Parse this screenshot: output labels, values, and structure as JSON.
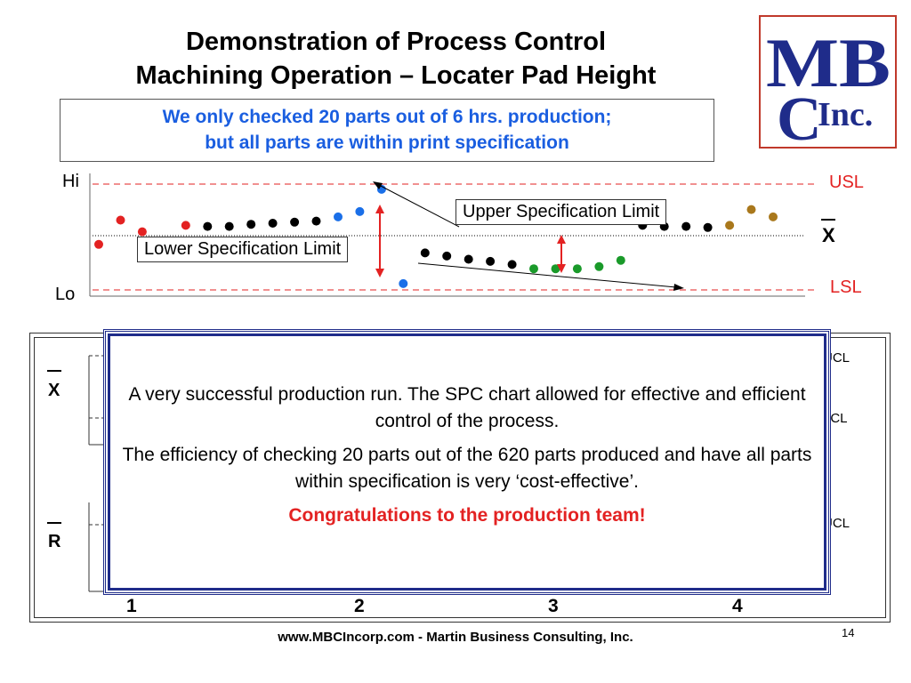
{
  "title_line1": "Demonstration of Process Control",
  "title_line2": "Machining Operation – Locater Pad Height",
  "logo": {
    "top": "MB",
    "c": "C",
    "inc": "Inc."
  },
  "callout_line1": "We only checked 20 parts out of 6 hrs. production;",
  "callout_line2": "but all parts are within print specification",
  "colors": {
    "red": "#e32222",
    "blue": "#1a6fe8",
    "black": "#000000",
    "green": "#1a9a2a",
    "olive": "#a9781c",
    "frame": "#1f2c8a"
  },
  "chart_data": {
    "type": "scatter",
    "y_tick_labels": [
      "Hi",
      "Lo"
    ],
    "reference_lines": [
      {
        "name": "USL",
        "style": "dashed",
        "color": "#e32222"
      },
      {
        "name": "X",
        "style": "dotted",
        "color": "#000000"
      },
      {
        "name": "LSL",
        "style": "dashed",
        "color": "#e32222"
      }
    ],
    "scale_note": "values on 0 (Lo) to 100 (Hi) scale",
    "ylim": [
      0,
      100
    ],
    "series": [
      {
        "color": "#e32222",
        "points": [
          [
            1,
            43
          ],
          [
            2,
            66
          ],
          [
            3,
            55
          ],
          [
            5,
            61
          ]
        ]
      },
      {
        "color": "#000000",
        "points": [
          [
            6,
            60
          ],
          [
            7,
            60
          ],
          [
            8,
            62
          ],
          [
            9,
            63
          ],
          [
            10,
            64
          ],
          [
            11,
            65
          ]
        ]
      },
      {
        "color": "#1a6fe8",
        "points": [
          [
            12,
            69
          ],
          [
            13,
            74
          ],
          [
            14,
            95
          ],
          [
            15,
            6
          ]
        ]
      },
      {
        "color": "#000000",
        "points": [
          [
            16,
            35
          ],
          [
            17,
            32
          ],
          [
            18,
            29
          ],
          [
            19,
            27
          ],
          [
            20,
            24
          ]
        ]
      },
      {
        "color": "#1a9a2a",
        "points": [
          [
            21,
            20
          ],
          [
            22,
            20
          ],
          [
            23,
            20
          ],
          [
            24,
            22
          ],
          [
            25,
            28
          ]
        ]
      },
      {
        "color": "#000000",
        "points": [
          [
            26,
            61
          ],
          [
            27,
            60
          ],
          [
            28,
            60
          ],
          [
            29,
            59
          ]
        ]
      },
      {
        "color": "#a9781c",
        "points": [
          [
            30,
            61
          ],
          [
            31,
            76
          ],
          [
            32,
            69
          ]
        ]
      }
    ],
    "annotations": {
      "upper_spec": "Upper Specification Limit",
      "lower_spec": "Lower Specification Limit"
    }
  },
  "axis": {
    "hi": "Hi",
    "lo": "Lo",
    "usl": "USL",
    "lsl": "LSL",
    "xbar": "X"
  },
  "spc": {
    "xbar_label": "X",
    "r_label": "R",
    "ucl1": "UCL",
    "lcl": "LCL",
    "ucl2": "UCL",
    "hours": [
      "1",
      "2",
      "3",
      "4"
    ]
  },
  "message": {
    "p1": "A very successful production run.  The SPC chart allowed for effective and efficient control of the process.",
    "p2": "The efficiency of checking 20 parts out of the 620 parts produced and have all parts within specification is very ‘cost-effective’.",
    "p3": "Congratulations to the production team!"
  },
  "footer": "www.MBCIncorp.com  -  Martin Business Consulting, Inc.",
  "page_number": "14"
}
